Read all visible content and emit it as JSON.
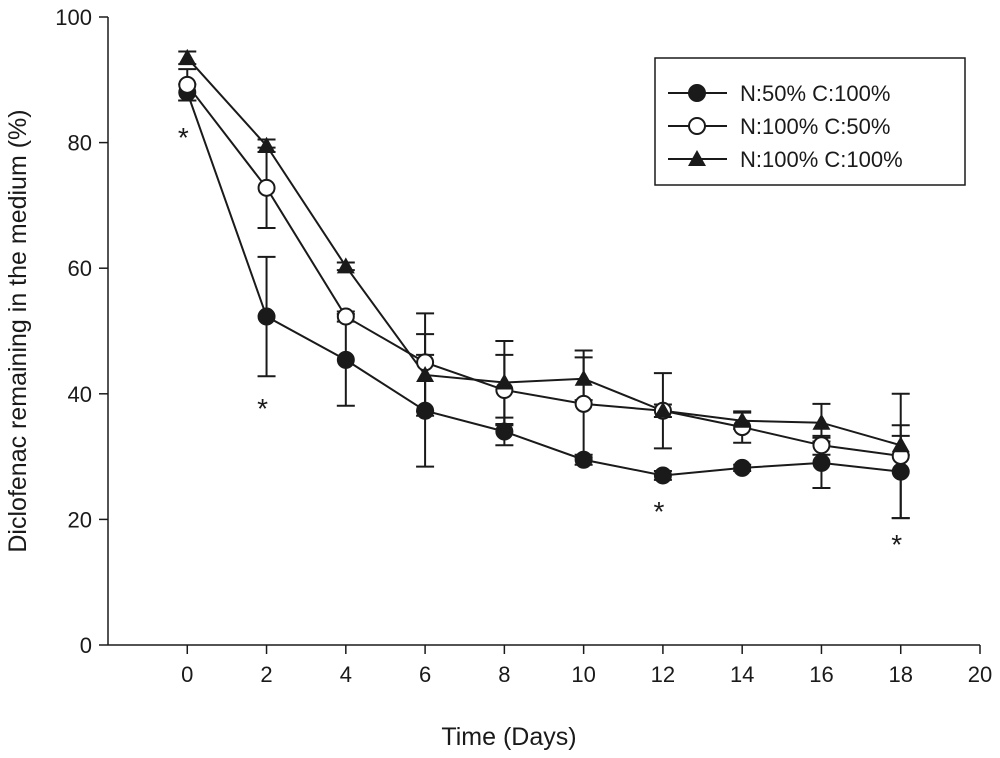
{
  "chart_data": {
    "type": "line",
    "title": "",
    "xlabel": "Time (Days)",
    "ylabel": "Diclofenac remaining in the medium (%)",
    "xlim": [
      -2,
      20
    ],
    "ylim": [
      0,
      100
    ],
    "xticks": [
      0,
      2,
      4,
      6,
      8,
      10,
      12,
      14,
      16,
      18,
      20
    ],
    "yticks": [
      0,
      20,
      40,
      60,
      80,
      100
    ],
    "grid": false,
    "legend_position": "top-right",
    "x": [
      0,
      2,
      4,
      6,
      8,
      10,
      12,
      14,
      16,
      18
    ],
    "series": [
      {
        "name": "N:50% C:100%",
        "marker": "filled-circle",
        "values": [
          88,
          52.3,
          45.4,
          37.3,
          34,
          29.5,
          27,
          28.2,
          29,
          27.6
        ],
        "error": [
          1.3,
          9.5,
          7.3,
          8.9,
          2.2,
          0.8,
          0.7,
          0.5,
          4,
          7.4
        ]
      },
      {
        "name": "N:100% C:50%",
        "marker": "open-circle",
        "values": [
          89.2,
          72.8,
          52.3,
          45,
          40.6,
          38.4,
          37.3,
          34.7,
          31.8,
          30.1
        ],
        "error": [
          2.5,
          6.4,
          0.8,
          7.8,
          5.6,
          8.5,
          6,
          2.5,
          1.5,
          9.9
        ]
      },
      {
        "name": "N:100% C:100%",
        "marker": "filled-triangle",
        "values": [
          93.5,
          79.5,
          60.3,
          43,
          41.8,
          42.4,
          37.3,
          35.7,
          35.4,
          31.8
        ],
        "error": [
          1,
          1,
          0.6,
          6.5,
          6.6,
          3.4,
          1,
          1.3,
          3,
          1.5
        ]
      }
    ],
    "annotations": [
      {
        "text": "*",
        "x": 0,
        "y": 81.5
      },
      {
        "text": "*",
        "x": 2,
        "y": 38.4
      },
      {
        "text": "*",
        "x": 12,
        "y": 22
      },
      {
        "text": "*",
        "x": 18,
        "y": 16.7
      }
    ]
  }
}
